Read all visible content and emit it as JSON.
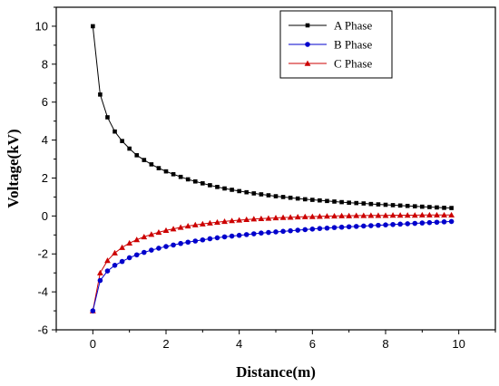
{
  "chart_data": {
    "type": "line",
    "title": "",
    "xlabel": "Distance(m)",
    "ylabel": "Voltage(kV)",
    "xlim": [
      -1,
      11
    ],
    "ylim": [
      -6,
      11
    ],
    "xticks": [
      0,
      2,
      4,
      6,
      8,
      10
    ],
    "yticks": [
      -6,
      -4,
      -2,
      0,
      2,
      4,
      6,
      8,
      10
    ],
    "grid": false,
    "legend_position": "top-right",
    "x": [
      0,
      0.2,
      0.4,
      0.6,
      0.8,
      1,
      1.2,
      1.4,
      1.6,
      1.8,
      2,
      2.2,
      2.4,
      2.6,
      2.8,
      3,
      3.2,
      3.4,
      3.6,
      3.8,
      4,
      4.2,
      4.4,
      4.6,
      4.8,
      5,
      5.2,
      5.4,
      5.6,
      5.8,
      6,
      6.2,
      6.4,
      6.6,
      6.8,
      7,
      7.2,
      7.4,
      7.6,
      7.8,
      8,
      8.2,
      8.4,
      8.6,
      8.8,
      9,
      9.2,
      9.4,
      9.6,
      9.8
    ],
    "series": [
      {
        "name": "A Phase",
        "color": "#000000",
        "marker": "square",
        "values": [
          10,
          6.4,
          5.2,
          4.45,
          3.95,
          3.55,
          3.2,
          2.95,
          2.72,
          2.52,
          2.35,
          2.2,
          2.06,
          1.93,
          1.82,
          1.72,
          1.62,
          1.53,
          1.45,
          1.38,
          1.31,
          1.25,
          1.19,
          1.14,
          1.09,
          1.04,
          1.0,
          0.96,
          0.92,
          0.88,
          0.85,
          0.82,
          0.79,
          0.76,
          0.73,
          0.7,
          0.68,
          0.66,
          0.63,
          0.61,
          0.59,
          0.57,
          0.55,
          0.53,
          0.51,
          0.49,
          0.47,
          0.45,
          0.43,
          0.42
        ]
      },
      {
        "name": "B Phase",
        "color": "#0000cc",
        "marker": "circle",
        "values": [
          -5.0,
          -3.4,
          -2.9,
          -2.6,
          -2.4,
          -2.2,
          -2.05,
          -1.92,
          -1.8,
          -1.7,
          -1.61,
          -1.53,
          -1.45,
          -1.38,
          -1.32,
          -1.26,
          -1.2,
          -1.15,
          -1.1,
          -1.06,
          -1.02,
          -0.98,
          -0.94,
          -0.9,
          -0.87,
          -0.84,
          -0.81,
          -0.78,
          -0.75,
          -0.72,
          -0.69,
          -0.66,
          -0.64,
          -0.61,
          -0.59,
          -0.57,
          -0.55,
          -0.53,
          -0.51,
          -0.49,
          -0.47,
          -0.45,
          -0.43,
          -0.41,
          -0.39,
          -0.37,
          -0.35,
          -0.33,
          -0.31,
          -0.29
        ]
      },
      {
        "name": "C Phase",
        "color": "#cc0000",
        "marker": "triangle",
        "values": [
          -5.0,
          -3.0,
          -2.35,
          -1.95,
          -1.66,
          -1.43,
          -1.25,
          -1.1,
          -0.97,
          -0.86,
          -0.76,
          -0.68,
          -0.6,
          -0.53,
          -0.47,
          -0.42,
          -0.37,
          -0.33,
          -0.29,
          -0.25,
          -0.22,
          -0.19,
          -0.16,
          -0.14,
          -0.12,
          -0.1,
          -0.08,
          -0.07,
          -0.05,
          -0.04,
          -0.03,
          -0.02,
          -0.01,
          0.0,
          0.01,
          0.01,
          0.02,
          0.02,
          0.03,
          0.03,
          0.03,
          0.04,
          0.04,
          0.04,
          0.04,
          0.05,
          0.05,
          0.05,
          0.05,
          0.05
        ]
      }
    ]
  }
}
